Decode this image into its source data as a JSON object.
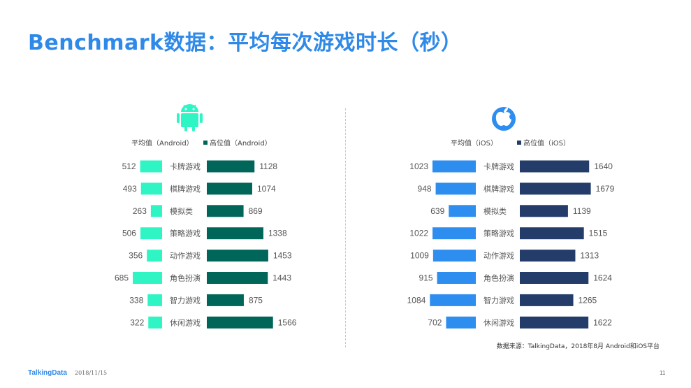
{
  "page_title": "Benchmark数据：平均每次游戏时长（秒）",
  "colors": {
    "title": "#2f89e8",
    "android_avg": "#2ff5c4",
    "android_high": "#00665a",
    "ios_avg": "#2d8ef0",
    "ios_high": "#233c6a"
  },
  "icons": {
    "android": "android-icon",
    "ios": "apple-icon"
  },
  "chart_data": [
    {
      "type": "bar",
      "orientation": "horizontal-butterfly",
      "platform": "Android",
      "categories": [
        "卡牌游戏",
        "棋牌游戏",
        "模拟类",
        "策略游戏",
        "动作游戏",
        "角色扮演",
        "智力游戏",
        "休闲游戏"
      ],
      "series": [
        {
          "name": "平均值（Android）",
          "values": [
            512,
            493,
            263,
            506,
            356,
            685,
            338,
            322
          ]
        },
        {
          "name": "高位值（Android）",
          "values": [
            1128,
            1074,
            869,
            1338,
            1453,
            1443,
            875,
            1566
          ]
        }
      ]
    },
    {
      "type": "bar",
      "orientation": "horizontal-butterfly",
      "platform": "iOS",
      "categories": [
        "卡牌游戏",
        "棋牌游戏",
        "模拟类",
        "策略游戏",
        "动作游戏",
        "角色扮演",
        "智力游戏",
        "休闲游戏"
      ],
      "series": [
        {
          "name": "平均值（iOS）",
          "values": [
            1023,
            948,
            639,
            1022,
            1009,
            915,
            1084,
            702
          ]
        },
        {
          "name": "高位值（iOS）",
          "values": [
            1640,
            1679,
            1139,
            1515,
            1313,
            1624,
            1265,
            1622
          ]
        }
      ]
    }
  ],
  "source_note": "数据来源：TalkingData，2018年8月 Android和iOS平台",
  "footer": {
    "logo": "TalkingData",
    "date": "2018/11/15",
    "page": "11"
  }
}
